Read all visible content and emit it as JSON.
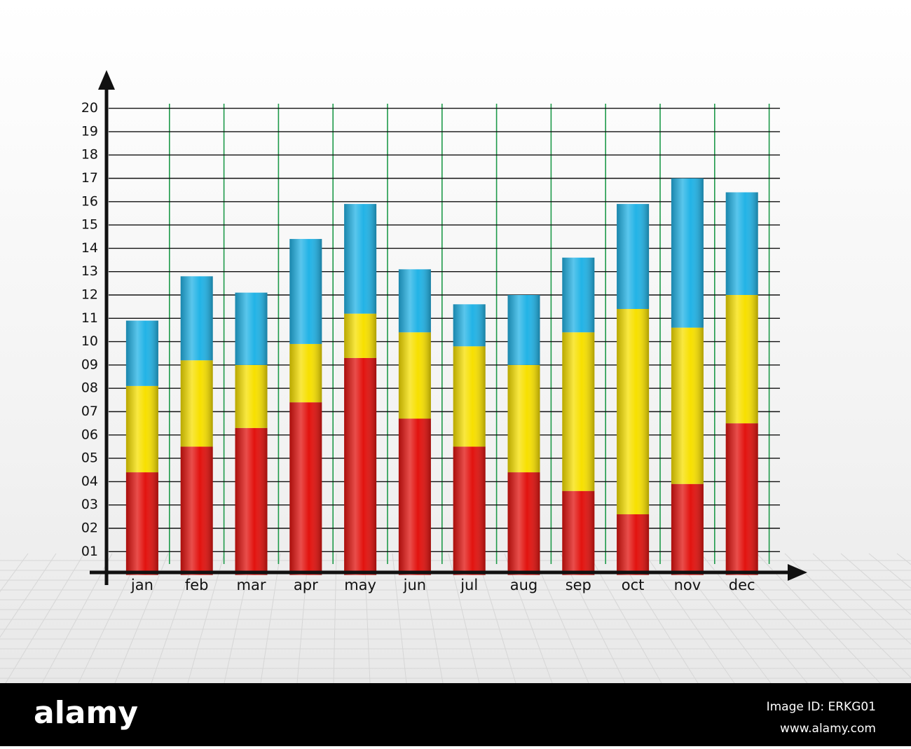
{
  "chart_data": {
    "type": "stacked_bar",
    "categories": [
      "jan",
      "feb",
      "mar",
      "apr",
      "may",
      "jun",
      "jul",
      "aug",
      "sep",
      "oct",
      "nov",
      "dec"
    ],
    "series": [
      {
        "color": "#e2130f",
        "values": [
          4.4,
          5.5,
          6.3,
          7.4,
          9.3,
          6.7,
          5.5,
          4.4,
          3.6,
          2.6,
          3.9,
          6.5
        ]
      },
      {
        "color": "#f7e000",
        "values": [
          3.7,
          3.7,
          2.7,
          2.5,
          1.9,
          3.7,
          4.3,
          4.6,
          6.8,
          8.8,
          6.7,
          5.5
        ]
      },
      {
        "color": "#22b3e6",
        "values": [
          2.8,
          3.6,
          3.1,
          4.5,
          4.7,
          2.7,
          1.8,
          3.0,
          3.2,
          4.5,
          6.4,
          4.4
        ]
      }
    ],
    "ylim": [
      0,
      20
    ],
    "yticks": [
      {
        "value": 1,
        "label": "01"
      },
      {
        "value": 2,
        "label": "02"
      },
      {
        "value": 3,
        "label": "03"
      },
      {
        "value": 4,
        "label": "04"
      },
      {
        "value": 5,
        "label": "05"
      },
      {
        "value": 6,
        "label": "06"
      },
      {
        "value": 7,
        "label": "07"
      },
      {
        "value": 8,
        "label": "08"
      },
      {
        "value": 9,
        "label": "09"
      },
      10,
      11,
      12,
      13,
      14,
      15,
      16,
      17,
      18,
      19,
      20
    ],
    "grid": true
  },
  "footer": {
    "logo": "alamy",
    "image_id": "Image ID: ERKG01",
    "url": "www.alamy.com"
  }
}
